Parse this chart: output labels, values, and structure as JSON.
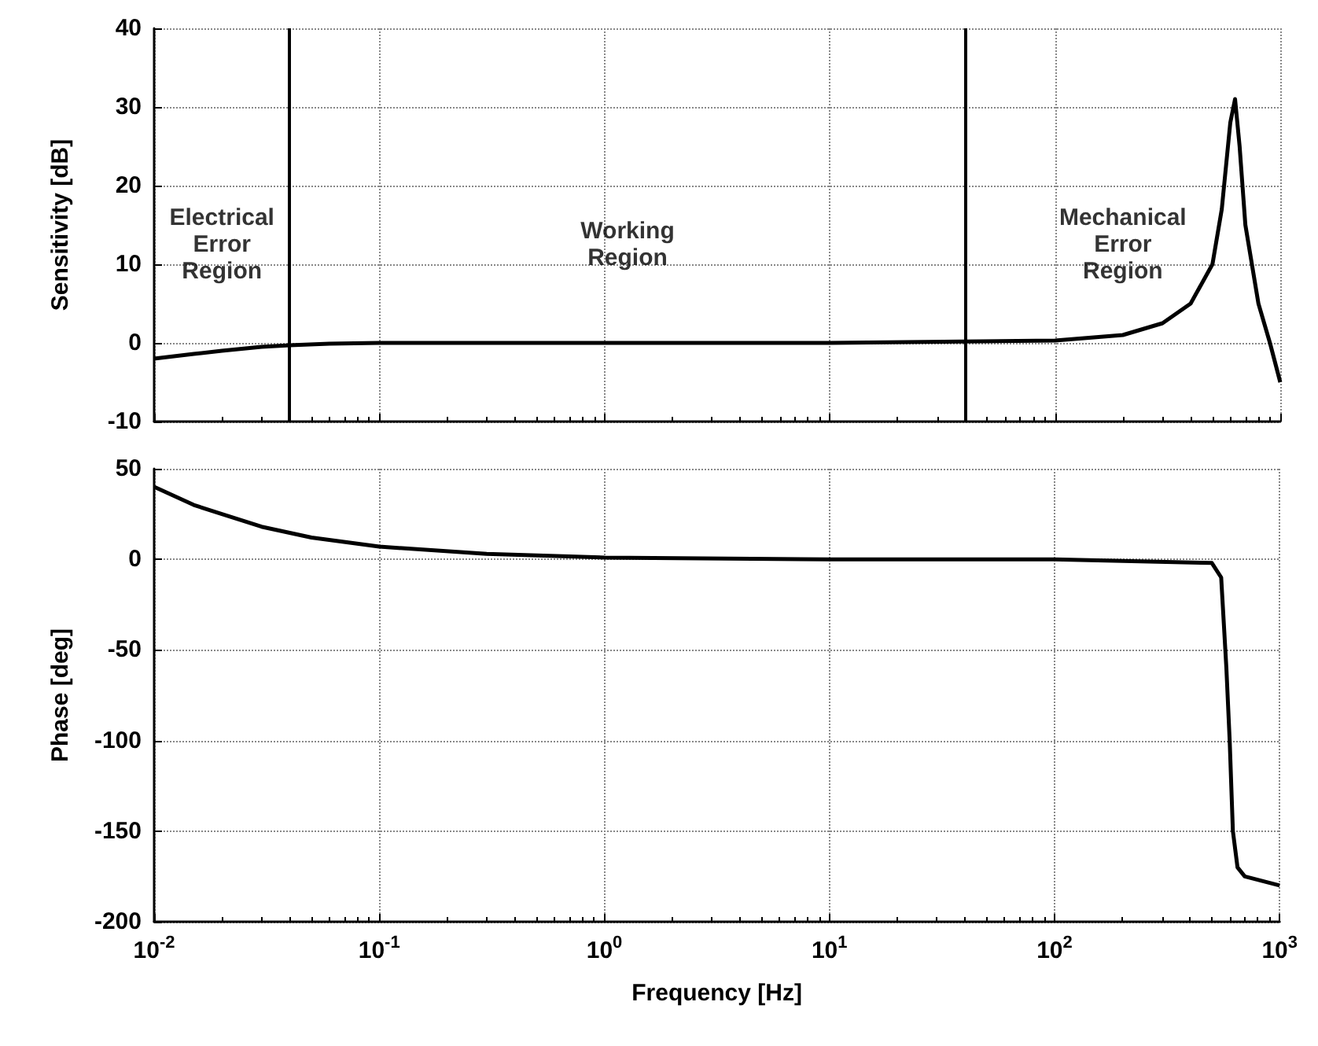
{
  "chart_data": [
    {
      "type": "line",
      "ylabel": "Sensitivity [dB]",
      "log": "x",
      "grid": true,
      "tick_labels": "y",
      "xlim": [
        0.01,
        1000
      ],
      "xticks": [
        {
          "value": 0.01,
          "label": null
        },
        {
          "value": 0.1,
          "label": null
        },
        {
          "value": 1,
          "label": null
        },
        {
          "value": 10,
          "label": null
        },
        {
          "value": 100,
          "label": null
        },
        {
          "value": 1000,
          "label": null
        }
      ],
      "ylim": [
        -10,
        40
      ],
      "yticks": [
        -10,
        0,
        10,
        20,
        30,
        40
      ],
      "series": [
        {
          "color": "#000000",
          "x": [
            0.01,
            0.015,
            0.02,
            0.03,
            0.04,
            0.06,
            0.1,
            1,
            10,
            100,
            200,
            300,
            400,
            500,
            550,
            600,
            630,
            660,
            700,
            800,
            900,
            1000
          ],
          "values": [
            -2,
            -1.4,
            -1,
            -0.5,
            -0.3,
            -0.1,
            0,
            0,
            0,
            0.3,
            1,
            2.5,
            5,
            10,
            17,
            28,
            31,
            25,
            15,
            5,
            0,
            -5
          ]
        }
      ],
      "ref_lines": [
        {
          "axis": "x",
          "value": 0.04
        },
        {
          "axis": "x",
          "value": 40
        }
      ],
      "annotations": [
        "Electrical\nError\nRegion",
        "Working\nRegion",
        "Mechanical\nError\nRegion"
      ]
    },
    {
      "type": "line",
      "xlabel": "Frequency [Hz]",
      "ylabel": "Phase [deg]",
      "log": "x",
      "grid": true,
      "xlim": [
        0.01,
        1000
      ],
      "xticks": [
        {
          "value": 0.01,
          "label": "10$^{-2}$"
        },
        {
          "value": 0.1,
          "label": "10$^{-1}$"
        },
        {
          "value": 1,
          "label": "10$^{0}$"
        },
        {
          "value": 10,
          "label": "10$^{1}$"
        },
        {
          "value": 100,
          "label": "10$^{2}$"
        },
        {
          "value": 1000,
          "label": "10$^{3}$"
        }
      ],
      "ylim": [
        -200,
        50
      ],
      "yticks": [
        -200,
        -150,
        -100,
        -50,
        0,
        50
      ],
      "series": [
        {
          "color": "#000000",
          "x": [
            0.01,
            0.015,
            0.02,
            0.03,
            0.05,
            0.1,
            0.3,
            1,
            10,
            100,
            500,
            550,
            580,
            600,
            620,
            650,
            700,
            1000
          ],
          "values": [
            40,
            30,
            25,
            18,
            12,
            7,
            3,
            1,
            0,
            0,
            -2,
            -10,
            -60,
            -100,
            -150,
            -170,
            -175,
            -180
          ]
        }
      ]
    }
  ]
}
